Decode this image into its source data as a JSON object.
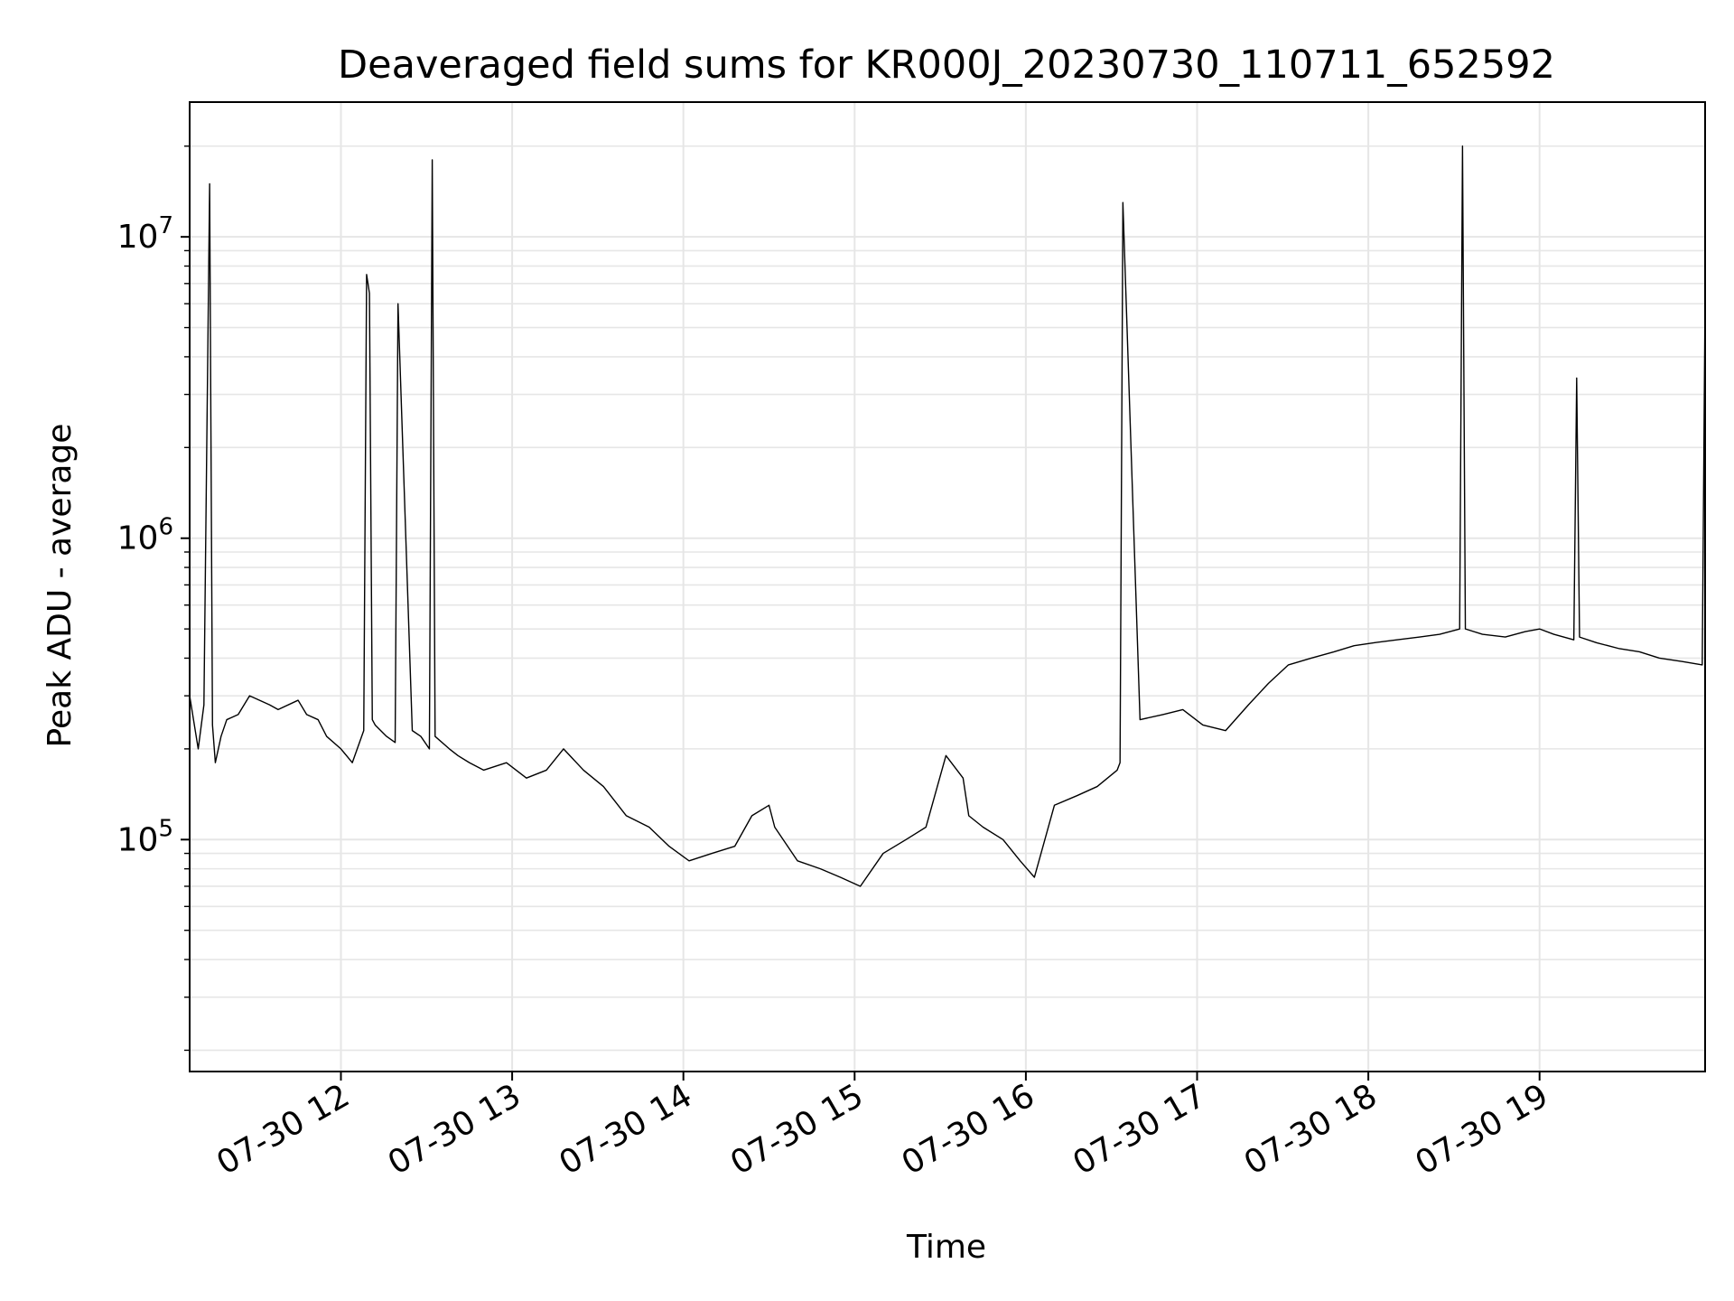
{
  "chart_data": {
    "type": "line",
    "title": "Deaveraged field sums for KR000J_20230730_110711_652592",
    "xlabel": "Time",
    "ylabel": "Peak ADU - average",
    "yscale": "log",
    "ylim": [
      17000,
      28000000
    ],
    "xlim": [
      "2023-07-30 11:07",
      "2023-07-30 19:58"
    ],
    "grid": true,
    "line_color": "#000000",
    "x_ticks": [
      {
        "t": "2023-07-30 12:00",
        "label": "07-30 12"
      },
      {
        "t": "2023-07-30 13:00",
        "label": "07-30 13"
      },
      {
        "t": "2023-07-30 14:00",
        "label": "07-30 14"
      },
      {
        "t": "2023-07-30 15:00",
        "label": "07-30 15"
      },
      {
        "t": "2023-07-30 16:00",
        "label": "07-30 16"
      },
      {
        "t": "2023-07-30 17:00",
        "label": "07-30 17"
      },
      {
        "t": "2023-07-30 18:00",
        "label": "07-30 18"
      },
      {
        "t": "2023-07-30 19:00",
        "label": "07-30 19"
      }
    ],
    "y_ticks": [
      {
        "value": 100000,
        "base": "10",
        "exp": "5"
      },
      {
        "value": 1000000,
        "base": "10",
        "exp": "6"
      },
      {
        "value": 10000000,
        "base": "10",
        "exp": "7"
      }
    ],
    "series": [
      {
        "x": [
          "2023-07-30 11:07",
          "2023-07-30 11:10",
          "2023-07-30 11:12",
          "2023-07-30 11:14",
          "2023-07-30 11:15",
          "2023-07-30 11:16",
          "2023-07-30 11:18",
          "2023-07-30 11:20",
          "2023-07-30 11:24",
          "2023-07-30 11:28",
          "2023-07-30 11:35",
          "2023-07-30 11:38",
          "2023-07-30 11:45",
          "2023-07-30 11:48",
          "2023-07-30 11:52",
          "2023-07-30 11:55",
          "2023-07-30 12:00",
          "2023-07-30 12:04",
          "2023-07-30 12:08",
          "2023-07-30 12:09",
          "2023-07-30 12:10",
          "2023-07-30 12:11",
          "2023-07-30 12:12",
          "2023-07-30 12:16",
          "2023-07-30 12:19",
          "2023-07-30 12:20",
          "2023-07-30 12:25",
          "2023-07-30 12:28",
          "2023-07-30 12:31",
          "2023-07-30 12:32",
          "2023-07-30 12:33",
          "2023-07-30 12:38",
          "2023-07-30 12:41",
          "2023-07-30 12:45",
          "2023-07-30 12:50",
          "2023-07-30 12:58",
          "2023-07-30 13:05",
          "2023-07-30 13:12",
          "2023-07-30 13:18",
          "2023-07-30 13:25",
          "2023-07-30 13:32",
          "2023-07-30 13:40",
          "2023-07-30 13:48",
          "2023-07-30 13:55",
          "2023-07-30 14:02",
          "2023-07-30 14:10",
          "2023-07-30 14:18",
          "2023-07-30 14:24",
          "2023-07-30 14:30",
          "2023-07-30 14:32",
          "2023-07-30 14:40",
          "2023-07-30 14:48",
          "2023-07-30 14:55",
          "2023-07-30 15:02",
          "2023-07-30 15:10",
          "2023-07-30 15:18",
          "2023-07-30 15:25",
          "2023-07-30 15:32",
          "2023-07-30 15:38",
          "2023-07-30 15:40",
          "2023-07-30 15:45",
          "2023-07-30 15:52",
          "2023-07-30 15:58",
          "2023-07-30 16:03",
          "2023-07-30 16:10",
          "2023-07-30 16:18",
          "2023-07-30 16:25",
          "2023-07-30 16:32",
          "2023-07-30 16:33",
          "2023-07-30 16:34",
          "2023-07-30 16:40",
          "2023-07-30 16:48",
          "2023-07-30 16:55",
          "2023-07-30 17:02",
          "2023-07-30 17:10",
          "2023-07-30 17:18",
          "2023-07-30 17:25",
          "2023-07-30 17:32",
          "2023-07-30 17:40",
          "2023-07-30 17:48",
          "2023-07-30 17:55",
          "2023-07-30 18:02",
          "2023-07-30 18:10",
          "2023-07-30 18:18",
          "2023-07-30 18:25",
          "2023-07-30 18:32",
          "2023-07-30 18:33",
          "2023-07-30 18:34",
          "2023-07-30 18:40",
          "2023-07-30 18:48",
          "2023-07-30 18:55",
          "2023-07-30 19:00",
          "2023-07-30 19:05",
          "2023-07-30 19:12",
          "2023-07-30 19:13",
          "2023-07-30 19:14",
          "2023-07-30 19:20",
          "2023-07-30 19:28",
          "2023-07-30 19:35",
          "2023-07-30 19:42",
          "2023-07-30 19:50",
          "2023-07-30 19:57",
          "2023-07-30 19:58"
        ],
        "y": [
          300000,
          200000,
          280000,
          15000000,
          240000,
          180000,
          220000,
          250000,
          260000,
          300000,
          280000,
          270000,
          290000,
          260000,
          250000,
          220000,
          200000,
          180000,
          230000,
          7500000,
          6500000,
          250000,
          240000,
          220000,
          210000,
          6000000,
          230000,
          220000,
          200000,
          18000000,
          220000,
          200000,
          190000,
          180000,
          170000,
          180000,
          160000,
          170000,
          200000,
          170000,
          150000,
          120000,
          110000,
          95000,
          85000,
          90000,
          95000,
          120000,
          130000,
          110000,
          85000,
          80000,
          75000,
          70000,
          90000,
          100000,
          110000,
          190000,
          160000,
          120000,
          110000,
          100000,
          85000,
          75000,
          130000,
          140000,
          150000,
          170000,
          180000,
          13000000,
          250000,
          260000,
          270000,
          240000,
          230000,
          280000,
          330000,
          380000,
          400000,
          420000,
          440000,
          450000,
          460000,
          470000,
          480000,
          500000,
          20000000,
          500000,
          480000,
          470000,
          490000,
          500000,
          480000,
          460000,
          3400000,
          470000,
          450000,
          430000,
          420000,
          400000,
          390000,
          380000,
          6500000
        ]
      }
    ]
  }
}
